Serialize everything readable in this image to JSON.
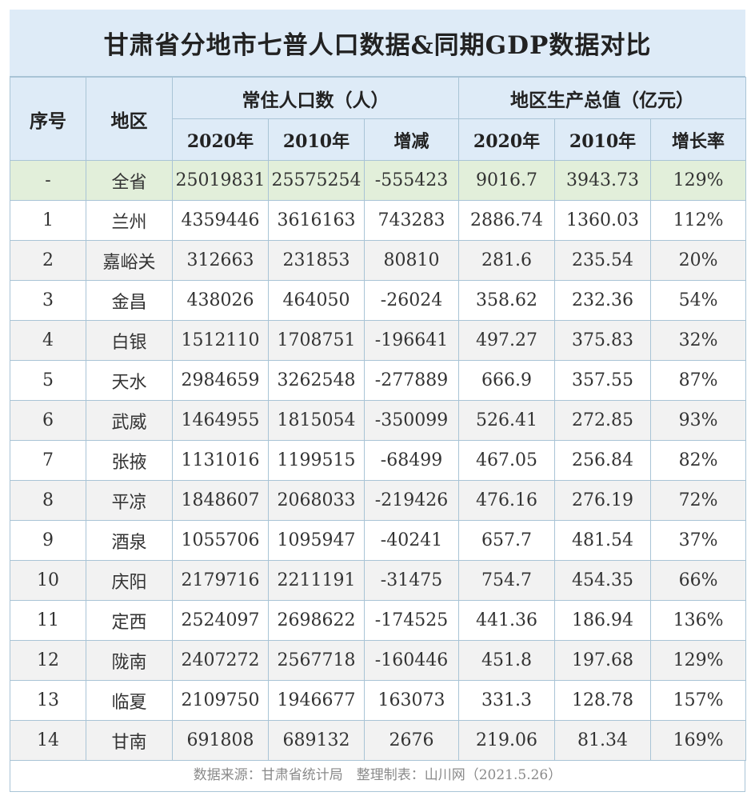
{
  "title": "甘肃省分地市七普人口数据&同期GDP数据对比",
  "headers": {
    "index": "序号",
    "region": "地区",
    "population_group": "常住人口数（人）",
    "gdp_group": "地区生产总值（亿元）",
    "pop_2020": "2020年",
    "pop_2010": "2010年",
    "pop_change": "增减",
    "gdp_2020": "2020年",
    "gdp_2010": "2010年",
    "gdp_growth": "增长率"
  },
  "rows": [
    {
      "idx": "-",
      "region": "全省",
      "p2020": "25019831",
      "p2010": "25575254",
      "pchg": "-555423",
      "g2020": "9016.7",
      "g2010": "3943.73",
      "growth": "129%"
    },
    {
      "idx": "1",
      "region": "兰州",
      "p2020": "4359446",
      "p2010": "3616163",
      "pchg": "743283",
      "g2020": "2886.74",
      "g2010": "1360.03",
      "growth": "112%"
    },
    {
      "idx": "2",
      "region": "嘉峪关",
      "p2020": "312663",
      "p2010": "231853",
      "pchg": "80810",
      "g2020": "281.6",
      "g2010": "235.54",
      "growth": "20%"
    },
    {
      "idx": "3",
      "region": "金昌",
      "p2020": "438026",
      "p2010": "464050",
      "pchg": "-26024",
      "g2020": "358.62",
      "g2010": "232.36",
      "growth": "54%"
    },
    {
      "idx": "4",
      "region": "白银",
      "p2020": "1512110",
      "p2010": "1708751",
      "pchg": "-196641",
      "g2020": "497.27",
      "g2010": "375.83",
      "growth": "32%"
    },
    {
      "idx": "5",
      "region": "天水",
      "p2020": "2984659",
      "p2010": "3262548",
      "pchg": "-277889",
      "g2020": "666.9",
      "g2010": "357.55",
      "growth": "87%"
    },
    {
      "idx": "6",
      "region": "武威",
      "p2020": "1464955",
      "p2010": "1815054",
      "pchg": "-350099",
      "g2020": "526.41",
      "g2010": "272.85",
      "growth": "93%"
    },
    {
      "idx": "7",
      "region": "张掖",
      "p2020": "1131016",
      "p2010": "1199515",
      "pchg": "-68499",
      "g2020": "467.05",
      "g2010": "256.84",
      "growth": "82%"
    },
    {
      "idx": "8",
      "region": "平凉",
      "p2020": "1848607",
      "p2010": "2068033",
      "pchg": "-219426",
      "g2020": "476.16",
      "g2010": "276.19",
      "growth": "72%"
    },
    {
      "idx": "9",
      "region": "酒泉",
      "p2020": "1055706",
      "p2010": "1095947",
      "pchg": "-40241",
      "g2020": "657.7",
      "g2010": "481.54",
      "growth": "37%"
    },
    {
      "idx": "10",
      "region": "庆阳",
      "p2020": "2179716",
      "p2010": "2211191",
      "pchg": "-31475",
      "g2020": "754.7",
      "g2010": "454.35",
      "growth": "66%"
    },
    {
      "idx": "11",
      "region": "定西",
      "p2020": "2524097",
      "p2010": "2698622",
      "pchg": "-174525",
      "g2020": "441.36",
      "g2010": "186.94",
      "growth": "136%"
    },
    {
      "idx": "12",
      "region": "陇南",
      "p2020": "2407272",
      "p2010": "2567718",
      "pchg": "-160446",
      "g2020": "451.8",
      "g2010": "197.68",
      "growth": "129%"
    },
    {
      "idx": "13",
      "region": "临夏",
      "p2020": "2109750",
      "p2010": "1946677",
      "pchg": "163073",
      "g2020": "331.3",
      "g2010": "128.78",
      "growth": "157%"
    },
    {
      "idx": "14",
      "region": "甘南",
      "p2020": "691808",
      "p2010": "689132",
      "pchg": "2676",
      "g2020": "219.06",
      "g2010": "81.34",
      "growth": "169%"
    }
  ],
  "footer": "数据来源：甘肃省统计局　整理制表：山川网（2021.5.26）",
  "colors": {
    "header_bg": "#deebf7",
    "total_row_bg": "#e2efda",
    "stripe_bg": "#f2f2f2",
    "border": "#a9c4d6"
  }
}
